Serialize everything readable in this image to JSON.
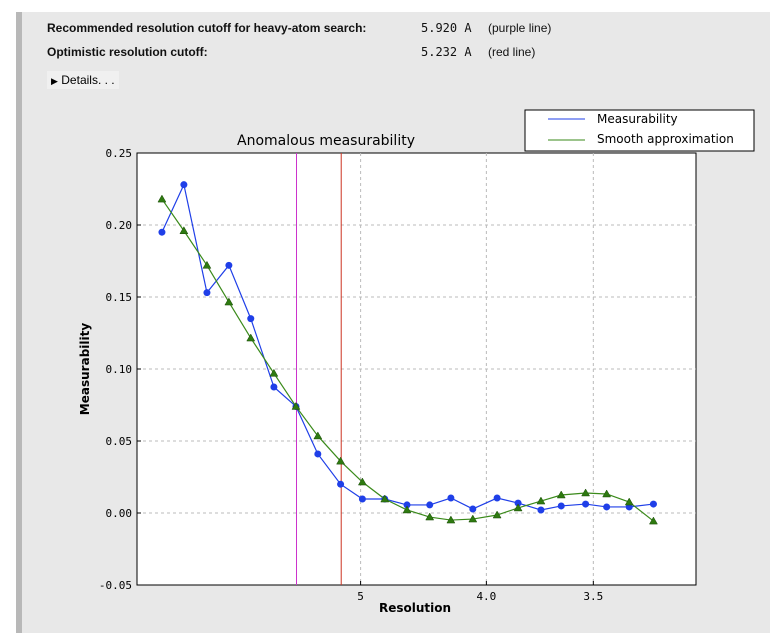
{
  "summary": {
    "recommended_label": "Recommended resolution cutoff for heavy-atom search:",
    "recommended_value": "5.920 A",
    "recommended_note": "(purple line)",
    "optimistic_label": "Optimistic resolution cutoff:",
    "optimistic_value": "5.232 A",
    "optimistic_note": "(red line)",
    "details_label": "Details. . .",
    "details_icon": "triangle-right-icon"
  },
  "chart_data": {
    "type": "line",
    "title": "Anomalous measurability",
    "xlabel": "Resolution",
    "ylabel": "Measurability",
    "x_scale": "reciprocal-square (1/d^2)",
    "xlim_resolution": [
      "inf",
      3.16
    ],
    "ylim": [
      -0.05,
      0.25
    ],
    "yticks": [
      "-0.05",
      "0.00",
      "0.05",
      "0.10",
      "0.15",
      "0.20",
      "0.25"
    ],
    "xticks": [
      "5",
      "4.0",
      "3.5"
    ],
    "grid": true,
    "legend_placement": "top-right",
    "x": [
      14.97,
      10.92,
      8.94,
      7.8,
      7.01,
      6.39,
      5.93,
      5.56,
      5.24,
      4.98,
      4.75,
      4.55,
      4.37,
      4.22,
      4.08,
      3.94,
      3.83,
      3.72,
      3.63,
      3.53,
      3.45,
      3.37,
      3.29
    ],
    "series": [
      {
        "name": "Measurability",
        "color": "#1f3fe8",
        "marker": "circle",
        "values": [
          0.195,
          0.228,
          0.153,
          0.172,
          0.135,
          0.0875,
          0.074,
          0.041,
          0.02,
          0.0097,
          0.0097,
          0.0056,
          0.0056,
          0.0104,
          0.0028,
          0.0104,
          0.0069,
          0.0021,
          0.0049,
          0.0062,
          0.0042,
          0.0042,
          0.0062
        ]
      },
      {
        "name": "Smooth approximation",
        "color": "#3a8a1a",
        "marker": "triangle",
        "values": [
          0.218,
          0.196,
          0.172,
          0.1465,
          0.1215,
          0.097,
          0.074,
          0.0535,
          0.036,
          0.0215,
          0.0097,
          0.0021,
          -0.0028,
          -0.0049,
          -0.0042,
          -0.0014,
          0.0035,
          0.0083,
          0.0125,
          0.0139,
          0.0132,
          0.0076,
          -0.0056
        ]
      }
    ],
    "cutoff_lines": [
      {
        "resolution": 5.92,
        "color": "#cc33cc"
      },
      {
        "resolution": 5.232,
        "color": "#cc3322"
      }
    ]
  }
}
